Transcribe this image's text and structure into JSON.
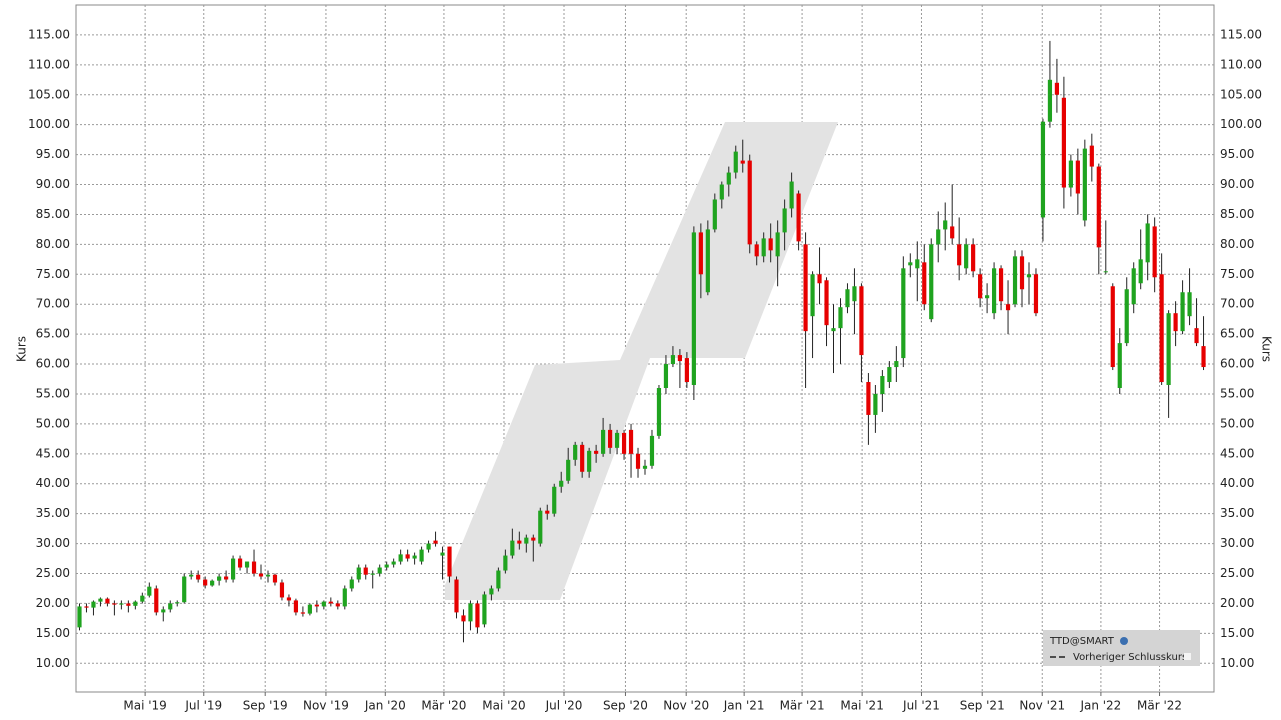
{
  "chart_data": {
    "type": "candlestick",
    "ylabel": "Kurs",
    "ylim": [
      5.2,
      120
    ],
    "xlim": [
      -0.5,
      162.5
    ],
    "yticks": [
      {
        "value": 10,
        "label": "10.00"
      },
      {
        "value": 15,
        "label": "15.00"
      },
      {
        "value": 20,
        "label": "20.00"
      },
      {
        "value": 25,
        "label": "25.00"
      },
      {
        "value": 30,
        "label": "30.00"
      },
      {
        "value": 35,
        "label": "35.00"
      },
      {
        "value": 40,
        "label": "40.00"
      },
      {
        "value": 45,
        "label": "45.00"
      },
      {
        "value": 50,
        "label": "50.00"
      },
      {
        "value": 55,
        "label": "55.00"
      },
      {
        "value": 60,
        "label": "60.00"
      },
      {
        "value": 65,
        "label": "65.00"
      },
      {
        "value": 70,
        "label": "70.00"
      },
      {
        "value": 75,
        "label": "75.00"
      },
      {
        "value": 80,
        "label": "80.00"
      },
      {
        "value": 85,
        "label": "85.00"
      },
      {
        "value": 90,
        "label": "90.00"
      },
      {
        "value": 95,
        "label": "95.00"
      },
      {
        "value": 100,
        "label": "100.00"
      },
      {
        "value": 105,
        "label": "105.00"
      },
      {
        "value": 110,
        "label": "110.00"
      },
      {
        "value": 115,
        "label": "115.00"
      }
    ],
    "xticks": [
      {
        "value": 9.4,
        "label": "Mai '19"
      },
      {
        "value": 17.8,
        "label": "Jul '19"
      },
      {
        "value": 26.6,
        "label": "Sep '19"
      },
      {
        "value": 35.3,
        "label": "Nov '19"
      },
      {
        "value": 43.8,
        "label": "Jan '20"
      },
      {
        "value": 52.2,
        "label": "Mär '20"
      },
      {
        "value": 60.8,
        "label": "Mai '20"
      },
      {
        "value": 69.4,
        "label": "Jul '20"
      },
      {
        "value": 78.2,
        "label": "Sep '20"
      },
      {
        "value": 86.9,
        "label": "Nov '20"
      },
      {
        "value": 95.2,
        "label": "Jan '21"
      },
      {
        "value": 103.5,
        "label": "Mär '21"
      },
      {
        "value": 112.1,
        "label": "Mai '21"
      },
      {
        "value": 120.6,
        "label": "Jul '21"
      },
      {
        "value": 129.3,
        "label": "Sep '21"
      },
      {
        "value": 137.9,
        "label": "Nov '21"
      },
      {
        "value": 146.3,
        "label": "Jan '22"
      },
      {
        "value": 154.7,
        "label": "Mär '22"
      }
    ],
    "grid": true,
    "up_color": "#1fa31f",
    "down_color": "#e60000",
    "legend": {
      "series": "TTD@SMART",
      "previous_close": "Vorheriger Schlusskurs"
    },
    "candles": [
      [
        16.0,
        20.0,
        15.5,
        19.5
      ],
      [
        19.5,
        20.0,
        18.5,
        19.3
      ],
      [
        19.3,
        20.5,
        18.0,
        20.3
      ],
      [
        20.3,
        21.0,
        19.5,
        20.8
      ],
      [
        20.8,
        21.0,
        19.5,
        20.0
      ],
      [
        20.0,
        20.5,
        18.0,
        19.8
      ],
      [
        19.8,
        20.5,
        19.0,
        20.0
      ],
      [
        20.0,
        20.5,
        18.5,
        19.6
      ],
      [
        19.6,
        20.5,
        19.0,
        20.3
      ],
      [
        20.3,
        21.8,
        20.0,
        21.3
      ],
      [
        21.3,
        23.5,
        21.0,
        22.8
      ],
      [
        22.5,
        23.0,
        18.0,
        18.5
      ],
      [
        18.5,
        19.5,
        17.0,
        19.0
      ],
      [
        19.0,
        20.5,
        18.5,
        20.0
      ],
      [
        20.0,
        20.5,
        19.5,
        20.2
      ],
      [
        20.2,
        25.0,
        20.0,
        24.5
      ],
      [
        24.5,
        25.5,
        24.0,
        24.8
      ],
      [
        24.8,
        25.5,
        23.5,
        24.0
      ],
      [
        24.0,
        24.5,
        22.5,
        23.0
      ],
      [
        23.0,
        24.0,
        22.8,
        23.8
      ],
      [
        23.8,
        25.0,
        23.0,
        24.5
      ],
      [
        24.5,
        25.5,
        23.5,
        24.0
      ],
      [
        24.0,
        28.0,
        23.5,
        27.5
      ],
      [
        27.5,
        28.0,
        25.5,
        26.0
      ],
      [
        26.0,
        27.0,
        25.0,
        27.0
      ],
      [
        27.0,
        29.0,
        24.5,
        25.0
      ],
      [
        25.0,
        26.5,
        24.0,
        24.5
      ],
      [
        24.5,
        25.5,
        23.5,
        24.8
      ],
      [
        24.8,
        25.0,
        23.0,
        23.5
      ],
      [
        23.5,
        24.0,
        20.5,
        21.0
      ],
      [
        21.0,
        21.5,
        19.5,
        20.5
      ],
      [
        20.5,
        20.8,
        18.0,
        18.5
      ],
      [
        18.5,
        19.5,
        17.8,
        18.3
      ],
      [
        18.3,
        20.0,
        18.0,
        19.8
      ],
      [
        19.8,
        20.5,
        18.5,
        19.5
      ],
      [
        19.5,
        20.5,
        19.0,
        20.3
      ],
      [
        20.3,
        21.0,
        19.5,
        20.0
      ],
      [
        20.0,
        20.5,
        19.0,
        19.5
      ],
      [
        19.5,
        23.0,
        19.0,
        22.5
      ],
      [
        22.5,
        24.5,
        22.0,
        24.0
      ],
      [
        24.0,
        26.5,
        23.5,
        26.0
      ],
      [
        26.0,
        26.5,
        24.0,
        24.8
      ],
      [
        24.8,
        25.5,
        22.5,
        25.0
      ],
      [
        25.0,
        26.5,
        24.5,
        26.0
      ],
      [
        26.0,
        27.0,
        25.5,
        26.5
      ],
      [
        26.5,
        27.5,
        26.0,
        27.0
      ],
      [
        27.0,
        29.0,
        26.5,
        28.2
      ],
      [
        28.2,
        29.0,
        27.0,
        27.5
      ],
      [
        27.5,
        28.5,
        26.5,
        28.0
      ],
      [
        27.0,
        29.5,
        26.5,
        29.0
      ],
      [
        29.0,
        30.5,
        28.5,
        30.0
      ],
      [
        30.5,
        32.0,
        29.5,
        30.0
      ],
      [
        28.0,
        29.5,
        24.0,
        28.5
      ],
      [
        29.5,
        29.5,
        23.5,
        24.5
      ],
      [
        24.0,
        24.5,
        17.5,
        18.5
      ],
      [
        18.0,
        19.0,
        13.5,
        17.0
      ],
      [
        17.0,
        20.5,
        15.5,
        20.0
      ],
      [
        20.0,
        20.5,
        15.0,
        16.0
      ],
      [
        16.5,
        22.0,
        16.0,
        21.5
      ],
      [
        21.5,
        23.0,
        20.5,
        22.5
      ],
      [
        22.5,
        26.0,
        22.0,
        25.5
      ],
      [
        25.5,
        29.0,
        25.0,
        28.0
      ],
      [
        28.0,
        32.5,
        27.5,
        30.5
      ],
      [
        30.5,
        32.0,
        29.0,
        30.0
      ],
      [
        30.0,
        31.5,
        28.5,
        31.0
      ],
      [
        31.0,
        31.5,
        27.0,
        30.5
      ],
      [
        30.0,
        36.0,
        29.5,
        35.5
      ],
      [
        35.5,
        36.5,
        34.0,
        35.0
      ],
      [
        35.0,
        40.0,
        34.5,
        39.5
      ],
      [
        39.5,
        42.0,
        38.5,
        40.5
      ],
      [
        40.5,
        46.0,
        40.0,
        44.0
      ],
      [
        44.0,
        47.0,
        43.0,
        46.5
      ],
      [
        46.5,
        47.0,
        41.0,
        42.0
      ],
      [
        42.0,
        46.0,
        41.0,
        45.5
      ],
      [
        45.5,
        46.5,
        43.5,
        45.0
      ],
      [
        45.0,
        51.0,
        44.5,
        49.0
      ],
      [
        49.0,
        50.0,
        45.0,
        46.0
      ],
      [
        46.0,
        49.0,
        45.0,
        48.5
      ],
      [
        48.5,
        49.0,
        44.0,
        45.0
      ],
      [
        49.0,
        50.0,
        41.0,
        45.0
      ],
      [
        45.0,
        46.0,
        41.0,
        42.5
      ],
      [
        42.5,
        44.0,
        41.5,
        43.0
      ],
      [
        43.0,
        49.0,
        42.5,
        48.0
      ],
      [
        48.0,
        56.5,
        47.5,
        56.0
      ],
      [
        56.0,
        61.5,
        55.0,
        60.0
      ],
      [
        60.0,
        63.0,
        59.5,
        61.5
      ],
      [
        61.5,
        62.5,
        56.0,
        60.5
      ],
      [
        61.0,
        62.0,
        56.0,
        57.0
      ],
      [
        56.5,
        83.0,
        54.0,
        82.0
      ],
      [
        82.0,
        83.5,
        71.0,
        75.0
      ],
      [
        72.0,
        84.0,
        71.5,
        82.5
      ],
      [
        82.5,
        88.5,
        82.0,
        87.5
      ],
      [
        87.5,
        90.5,
        86.0,
        90.0
      ],
      [
        90.0,
        93.0,
        88.0,
        92.0
      ],
      [
        92.0,
        96.5,
        91.0,
        95.5
      ],
      [
        94.0,
        97.5,
        92.0,
        93.5
      ],
      [
        94.0,
        95.0,
        78.5,
        80.0
      ],
      [
        80.0,
        80.5,
        76.5,
        78.0
      ],
      [
        78.0,
        82.0,
        77.0,
        81.0
      ],
      [
        81.0,
        83.5,
        77.0,
        79.0
      ],
      [
        78.0,
        84.0,
        73.0,
        82.0
      ],
      [
        82.0,
        87.5,
        79.0,
        86.0
      ],
      [
        86.0,
        92.0,
        84.5,
        90.5
      ],
      [
        88.5,
        89.0,
        79.0,
        80.5
      ],
      [
        80.0,
        82.0,
        56.0,
        65.5
      ],
      [
        68.0,
        75.5,
        61.0,
        75.0
      ],
      [
        75.0,
        79.5,
        70.0,
        73.5
      ],
      [
        74.0,
        74.5,
        63.0,
        66.5
      ],
      [
        65.5,
        70.0,
        58.5,
        66.0
      ],
      [
        66.0,
        71.0,
        60.0,
        69.5
      ],
      [
        69.5,
        73.5,
        68.5,
        72.5
      ],
      [
        70.5,
        76.0,
        65.0,
        73.0
      ],
      [
        73.0,
        73.5,
        57.0,
        61.5
      ],
      [
        57.0,
        58.5,
        46.5,
        51.5
      ],
      [
        51.5,
        56.5,
        48.5,
        55.0
      ],
      [
        55.0,
        59.0,
        52.0,
        58.0
      ],
      [
        57.0,
        60.5,
        56.0,
        59.5
      ],
      [
        59.5,
        63.0,
        57.0,
        60.5
      ],
      [
        61.0,
        78.0,
        59.5,
        76.0
      ],
      [
        76.5,
        78.5,
        74.5,
        77.0
      ],
      [
        76.0,
        80.5,
        70.5,
        77.5
      ],
      [
        77.0,
        80.0,
        69.0,
        70.0
      ],
      [
        67.5,
        81.0,
        67.0,
        80.0
      ],
      [
        80.0,
        85.5,
        77.0,
        82.5
      ],
      [
        82.5,
        87.0,
        79.0,
        84.0
      ],
      [
        83.0,
        90.0,
        80.0,
        81.0
      ],
      [
        80.0,
        84.5,
        74.0,
        76.5
      ],
      [
        76.0,
        81.0,
        75.0,
        80.0
      ],
      [
        80.0,
        81.0,
        74.5,
        75.5
      ],
      [
        75.0,
        76.0,
        69.5,
        71.0
      ],
      [
        71.0,
        73.5,
        68.5,
        71.5
      ],
      [
        68.5,
        77.0,
        67.5,
        76.0
      ],
      [
        76.0,
        76.5,
        69.0,
        70.5
      ],
      [
        70.0,
        74.0,
        65.0,
        69.0
      ],
      [
        70.0,
        79.0,
        69.5,
        78.0
      ],
      [
        78.0,
        79.0,
        69.5,
        72.5
      ],
      [
        74.5,
        77.0,
        70.0,
        75.0
      ],
      [
        75.0,
        76.0,
        68.0,
        68.5
      ],
      [
        84.5,
        101.0,
        80.5,
        100.5
      ],
      [
        100.5,
        114.0,
        99.5,
        107.5
      ],
      [
        107.0,
        111.0,
        102.0,
        105.0
      ],
      [
        104.5,
        108.0,
        86.0,
        89.5
      ],
      [
        89.5,
        95.0,
        88.0,
        94.0
      ],
      [
        94.0,
        96.0,
        85.0,
        88.5
      ],
      [
        84.0,
        97.5,
        83.0,
        96.0
      ],
      [
        96.5,
        98.5,
        90.5,
        93.0
      ],
      [
        93.0,
        93.5,
        75.0,
        79.5
      ],
      [
        75.5,
        84.0,
        75.0,
        75.5
      ],
      [
        73.0,
        73.5,
        59.0,
        59.5
      ],
      [
        56.0,
        66.0,
        55.0,
        63.5
      ],
      [
        63.5,
        74.5,
        63.0,
        72.5
      ],
      [
        70.0,
        77.0,
        68.5,
        76.0
      ],
      [
        73.5,
        82.5,
        72.5,
        77.5
      ],
      [
        77.0,
        85.0,
        74.0,
        83.5
      ],
      [
        83.0,
        84.5,
        72.0,
        74.5
      ],
      [
        75.0,
        78.5,
        56.5,
        57.0
      ],
      [
        56.5,
        69.0,
        51.0,
        68.5
      ],
      [
        68.5,
        70.5,
        63.0,
        65.5
      ],
      [
        65.5,
        74.0,
        65.0,
        72.0
      ],
      [
        68.0,
        76.0,
        66.5,
        72.0
      ],
      [
        66.0,
        71.0,
        63.0,
        63.5
      ],
      [
        63.0,
        68.0,
        59.0,
        59.5
      ]
    ]
  }
}
